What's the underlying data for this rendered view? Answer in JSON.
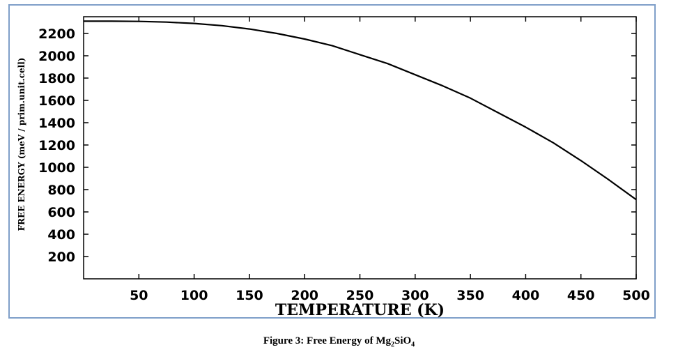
{
  "caption": {
    "prefix": "Figure 3: Free Energy of Mg",
    "sub1": "2",
    "mid": "SiO",
    "sub2": "4"
  },
  "chart_data": {
    "type": "line",
    "xlabel": "TEMPERATURE (K)",
    "ylabel": "FREE ENERGY (meV / prim.unit.cell)",
    "xlim": [
      0,
      500
    ],
    "ylim": [
      0,
      2350
    ],
    "xticks": [
      50,
      100,
      150,
      200,
      250,
      300,
      350,
      400,
      450,
      500
    ],
    "yticks": [
      200,
      400,
      600,
      800,
      1000,
      1200,
      1400,
      1600,
      1800,
      2000,
      2200
    ],
    "grid": false,
    "series": [
      {
        "color": "#000000",
        "x": [
          0,
          25,
          50,
          75,
          100,
          125,
          150,
          175,
          200,
          225,
          250,
          275,
          300,
          325,
          350,
          375,
          400,
          425,
          450,
          475,
          500
        ],
        "y": [
          2310,
          2310,
          2308,
          2302,
          2290,
          2270,
          2240,
          2200,
          2150,
          2090,
          2010,
          1930,
          1830,
          1730,
          1620,
          1490,
          1360,
          1220,
          1060,
          890,
          710
        ]
      }
    ]
  }
}
